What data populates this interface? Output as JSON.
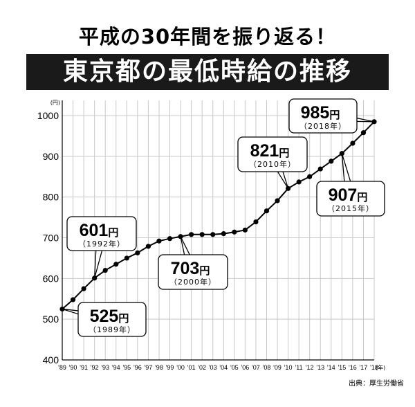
{
  "header": {
    "title": "平成の30年間を振り返る！",
    "subtitle": "東京都の最低時給の推移"
  },
  "source": "出典：厚生労働省",
  "chart_data": {
    "type": "line",
    "title": "東京都の最低時給の推移",
    "ylabel_unit": "(円)",
    "xlabel_unit": "(年)",
    "ylim": [
      400,
      1000
    ],
    "yticks": [
      "400",
      "500",
      "600",
      "700",
      "800",
      "900",
      "1000"
    ],
    "grid": true,
    "categories": [
      "'89",
      "'90",
      "'91",
      "'92",
      "'93",
      "'94",
      "'95",
      "'96",
      "'97",
      "'98",
      "'99",
      "'00",
      "'01",
      "'02",
      "'03",
      "'04",
      "'05",
      "'06",
      "'07",
      "'08",
      "'09",
      "'10",
      "'11",
      "'12",
      "'13",
      "'14",
      "'15",
      "'16",
      "'17",
      "'18"
    ],
    "series": [
      {
        "values": [
          525,
          548,
          575,
          601,
          620,
          635,
          650,
          663,
          679,
          692,
          698,
          703,
          708,
          708,
          708,
          710,
          714,
          719,
          739,
          766,
          791,
          821,
          837,
          850,
          869,
          888,
          907,
          932,
          958,
          985
        ]
      }
    ],
    "annotations": [
      {
        "index": 0,
        "value": "525",
        "unit": "円",
        "year": "（1989年）"
      },
      {
        "index": 3,
        "value": "601",
        "unit": "円",
        "year": "（1992年）"
      },
      {
        "index": 11,
        "value": "703",
        "unit": "円",
        "year": "（2000年）"
      },
      {
        "index": 21,
        "value": "821",
        "unit": "円",
        "year": "（2010年）"
      },
      {
        "index": 26,
        "value": "907",
        "unit": "円",
        "year": "（2015年）"
      },
      {
        "index": 29,
        "value": "985",
        "unit": "円",
        "year": "（2018年）"
      }
    ]
  }
}
